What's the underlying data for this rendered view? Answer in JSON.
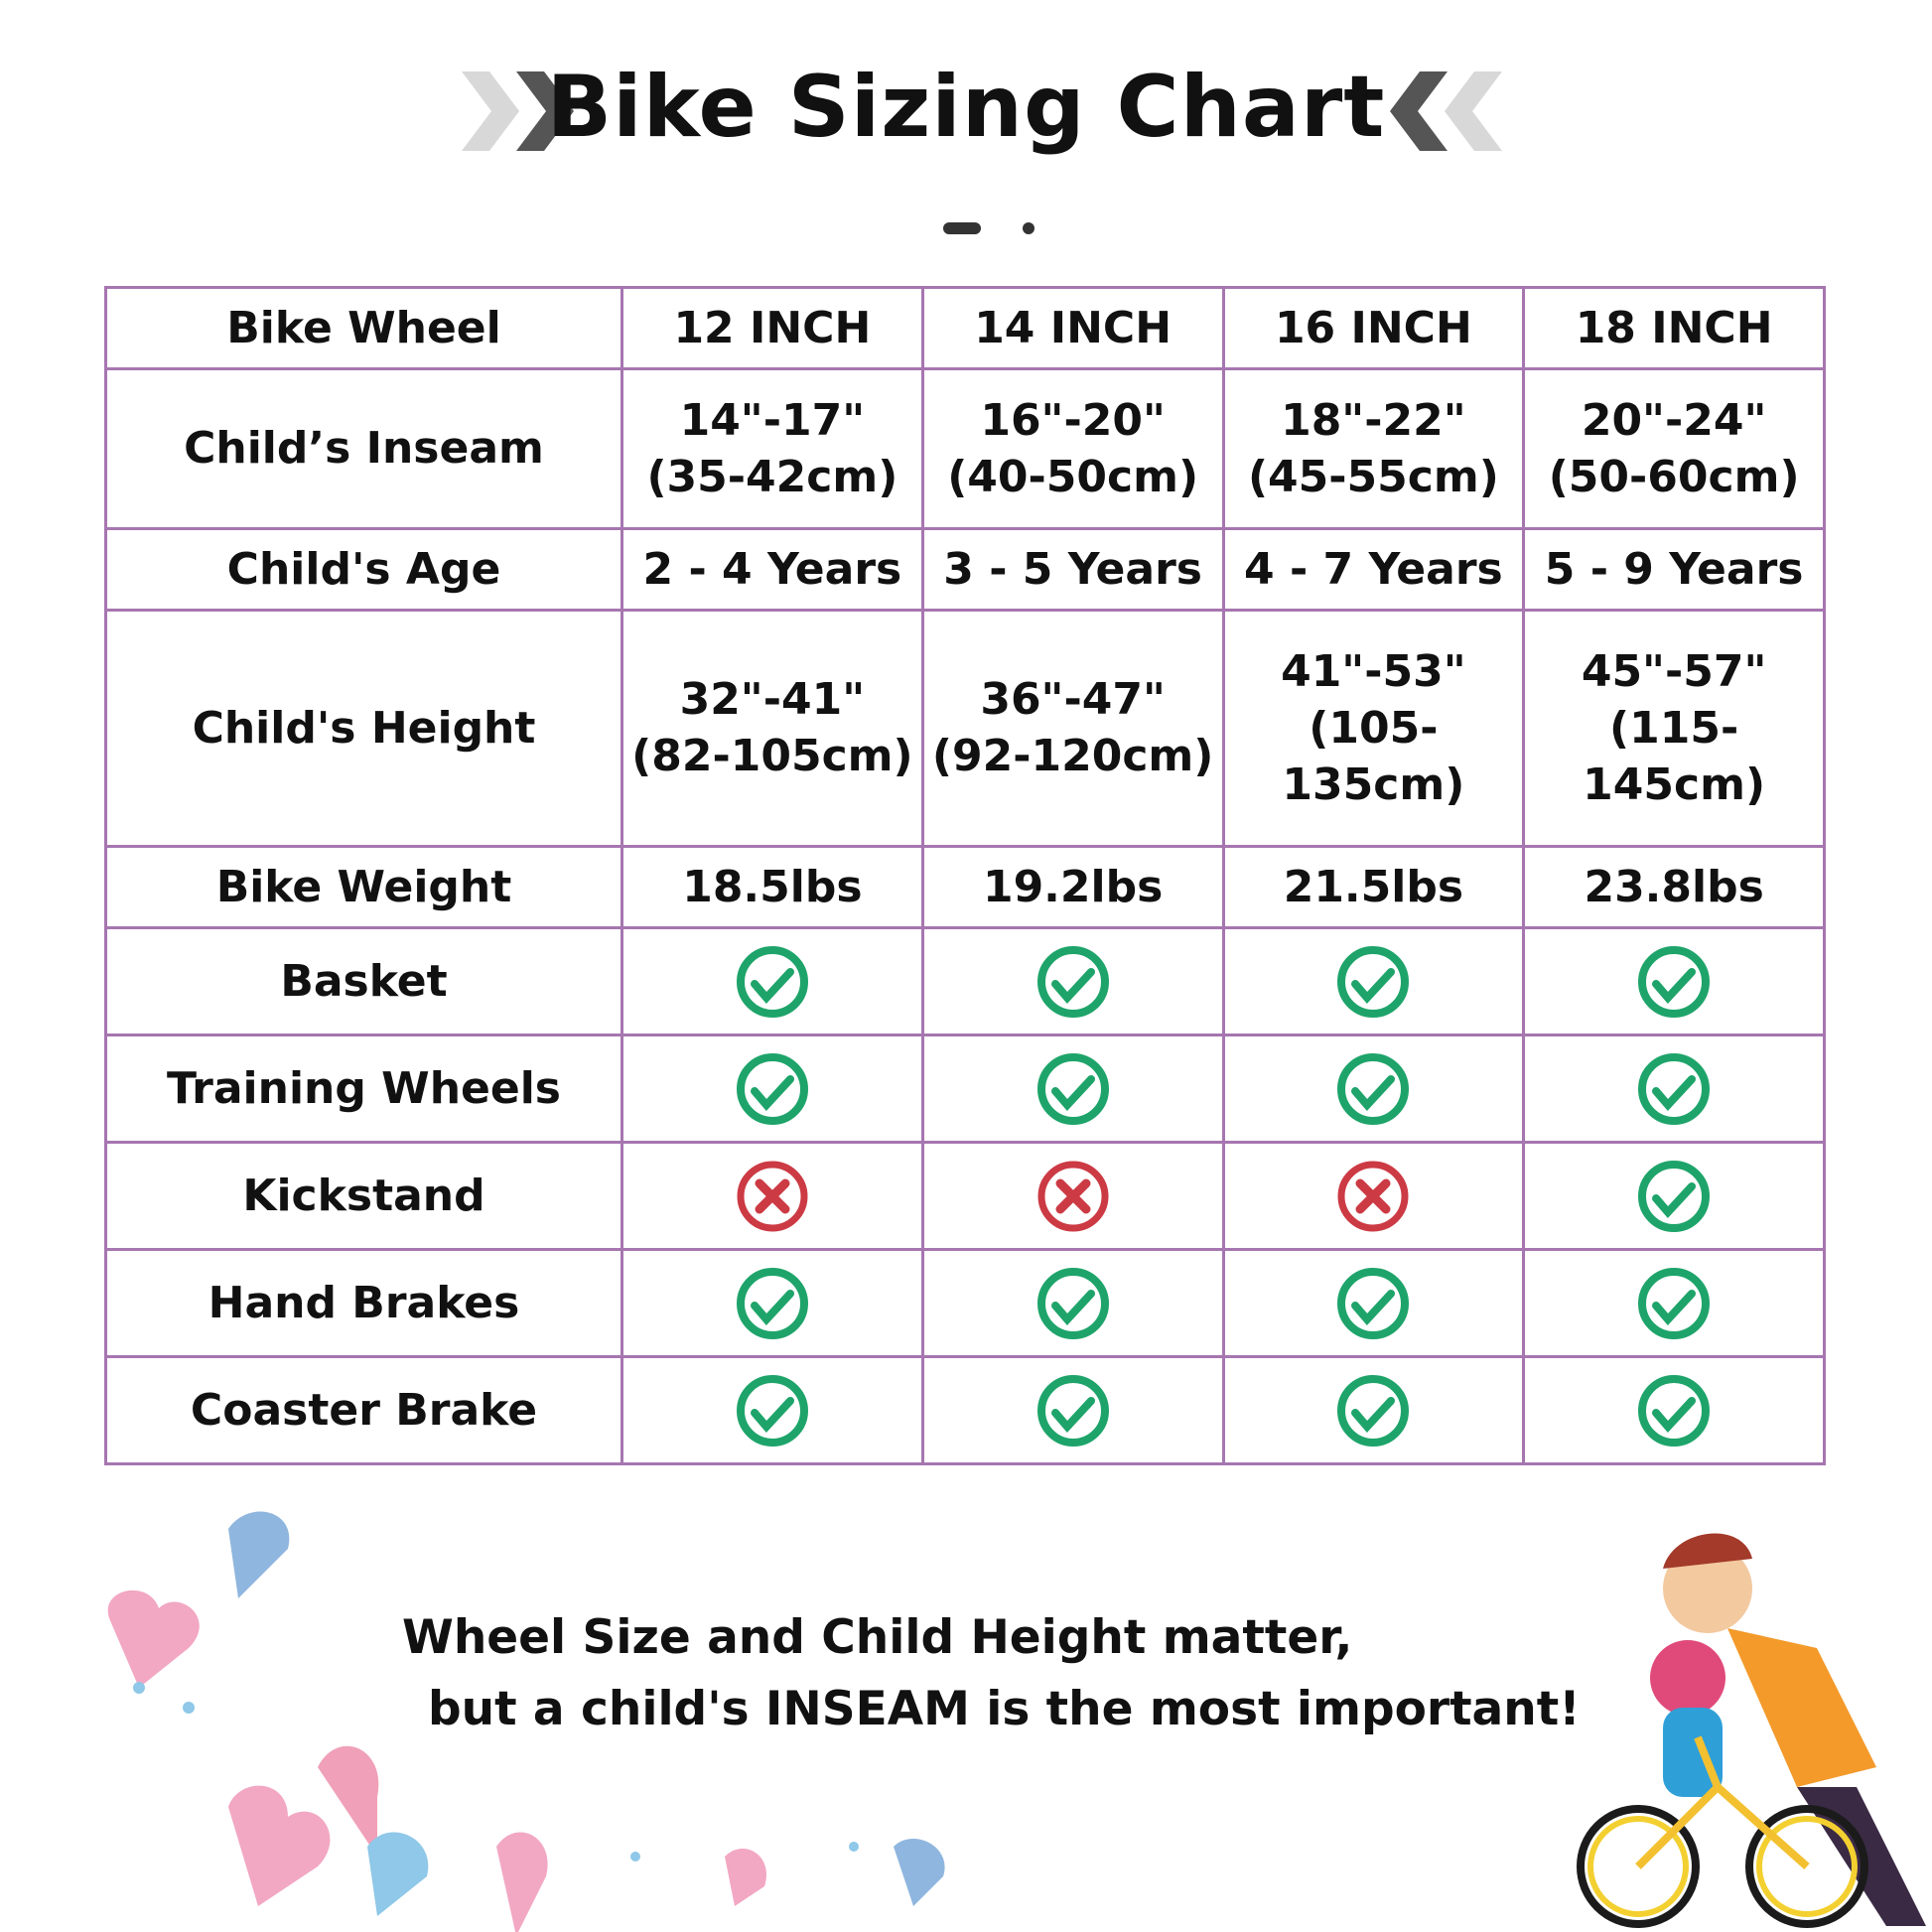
{
  "title": "Bike Sizing Chart",
  "table": {
    "header": [
      "Bike Wheel",
      "12 INCH",
      "14 INCH",
      "16 INCH",
      "18 INCH"
    ],
    "rows": [
      {
        "label": "Child’s Inseam",
        "values": [
          "14\"-17\"\n(35-42cm)",
          "16\"-20\"\n(40-50cm)",
          "18\"-22\"\n(45-55cm)",
          "20\"-24\"\n(50-60cm)"
        ]
      },
      {
        "label": "Child's Age",
        "values": [
          "2 - 4 Years",
          "3 - 5 Years",
          "4 - 7 Years",
          "5 - 9 Years"
        ]
      },
      {
        "label": "Child's Height",
        "values": [
          "32\"-41\"\n(82-105cm)",
          "36\"-47\"\n(92-120cm)",
          "41\"-53\"\n(105-135cm)",
          "45\"-57\"\n(115-145cm)"
        ]
      },
      {
        "label": "Bike Weight",
        "values": [
          "18.5lbs",
          "19.2lbs",
          "21.5lbs",
          "23.8lbs"
        ]
      },
      {
        "label": "Basket",
        "features": [
          true,
          true,
          true,
          true
        ]
      },
      {
        "label": "Training Wheels",
        "features": [
          true,
          true,
          true,
          true
        ]
      },
      {
        "label": "Kickstand",
        "features": [
          false,
          false,
          false,
          true
        ]
      },
      {
        "label": "Hand Brakes",
        "features": [
          true,
          true,
          true,
          true
        ]
      },
      {
        "label": "Coaster Brake",
        "features": [
          true,
          true,
          true,
          true
        ]
      }
    ]
  },
  "note": {
    "line1": "Wheel Size and Child Height matter,",
    "line2": "but a child's INSEAM is the most important!"
  },
  "colors": {
    "border": "#a676b0",
    "check": "#1ea46a",
    "cross": "#cc3a44"
  }
}
